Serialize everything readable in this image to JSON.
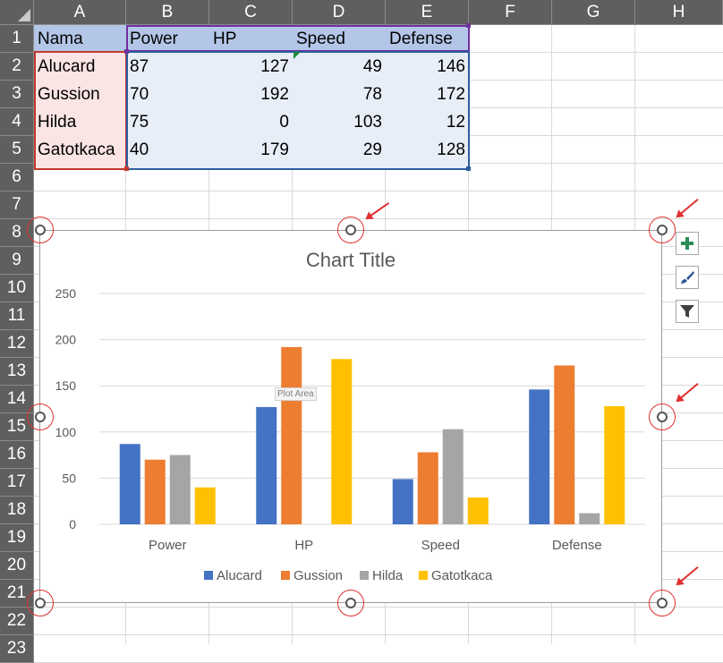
{
  "columns": [
    "A",
    "B",
    "C",
    "D",
    "E",
    "F",
    "G",
    "H"
  ],
  "rows": [
    "1",
    "2",
    "3",
    "4",
    "5",
    "6",
    "7",
    "8",
    "9",
    "10",
    "11",
    "12",
    "13",
    "14",
    "15",
    "16",
    "17",
    "18",
    "19",
    "20",
    "21",
    "22",
    "23"
  ],
  "table": {
    "headers": [
      "Nama",
      "Power",
      "HP",
      "Speed",
      "Defense"
    ],
    "rows": [
      {
        "name": "Alucard",
        "values": [
          "87",
          "127",
          "49",
          "146"
        ]
      },
      {
        "name": "Gussion",
        "values": [
          "70",
          "192",
          "78",
          "172"
        ]
      },
      {
        "name": "Hilda",
        "values": [
          "75",
          "0",
          "103",
          "12"
        ]
      },
      {
        "name": "Gatotkaca",
        "values": [
          "40",
          "179",
          "29",
          "128"
        ]
      }
    ]
  },
  "tooltip": "Plot Area",
  "side_buttons": [
    "add-chart-element",
    "chart-styles",
    "chart-filters"
  ],
  "chart_data": {
    "type": "bar",
    "title": "Chart Title",
    "categories": [
      "Power",
      "HP",
      "Speed",
      "Defense"
    ],
    "series": [
      {
        "name": "Alucard",
        "color": "#4472c4",
        "values": [
          87,
          127,
          49,
          146
        ]
      },
      {
        "name": "Gussion",
        "color": "#ed7d31",
        "values": [
          70,
          192,
          78,
          172
        ]
      },
      {
        "name": "Hilda",
        "color": "#a5a5a5",
        "values": [
          75,
          0,
          103,
          12
        ]
      },
      {
        "name": "Gatotkaca",
        "color": "#ffc000",
        "values": [
          40,
          179,
          29,
          128
        ]
      }
    ],
    "ylim": [
      0,
      250
    ],
    "yticks": [
      0,
      50,
      100,
      150,
      200,
      250
    ],
    "grid": true,
    "legend": "bottom"
  }
}
